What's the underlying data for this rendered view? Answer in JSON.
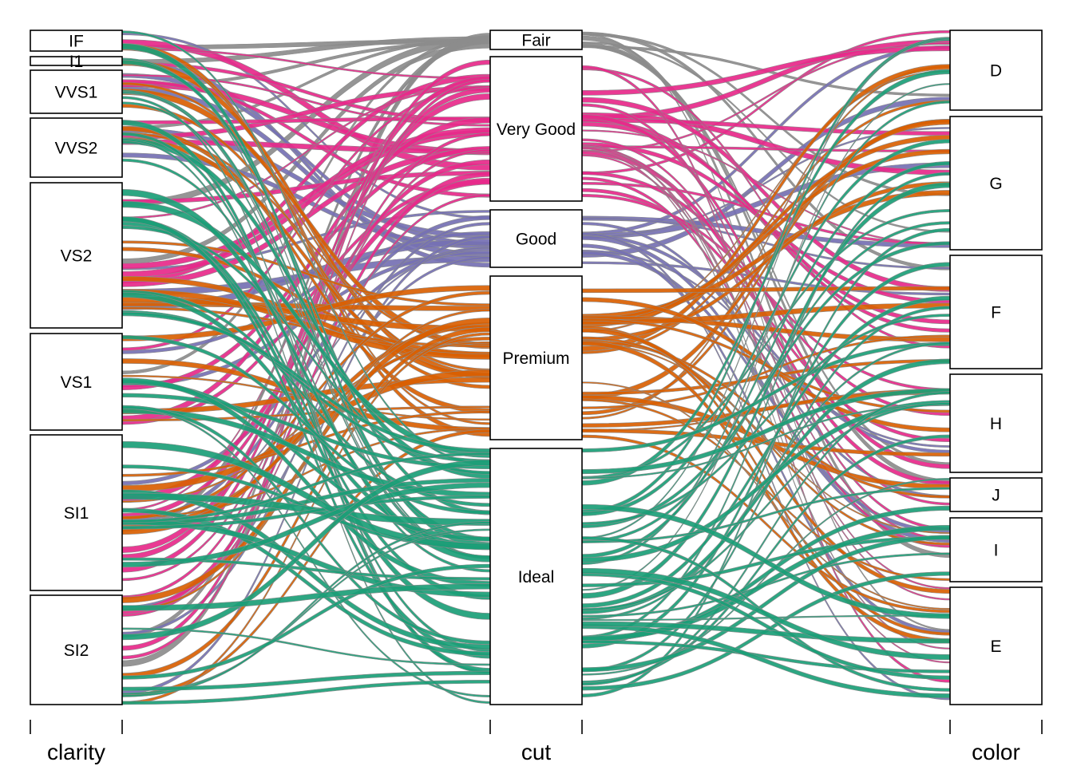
{
  "chart_data": {
    "type": "parallel-sets",
    "axes": [
      {
        "name": "clarity",
        "categories": [
          "IF",
          "I1",
          "VVS1",
          "VVS2",
          "VS2",
          "VS1",
          "SI1",
          "SI2"
        ]
      },
      {
        "name": "cut",
        "categories": [
          "Fair",
          "Very Good",
          "Good",
          "Premium",
          "Ideal"
        ]
      },
      {
        "name": "color",
        "categories": [
          "D",
          "G",
          "F",
          "H",
          "J",
          "I",
          "E"
        ]
      }
    ],
    "highlight_by": "cut",
    "colors": {
      "Ideal": "#1b9e77",
      "Premium": "#d95f02",
      "Good": "#7570b3",
      "Very Good": "#e7298a",
      "Fair": "#888888",
      "background": "#8c8c8c"
    }
  }
}
